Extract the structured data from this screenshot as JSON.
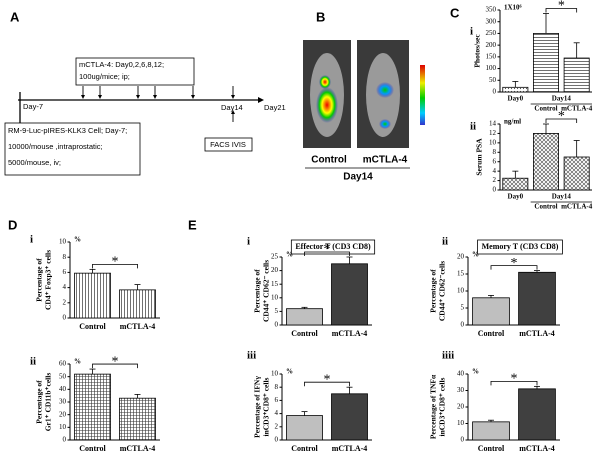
{
  "panels": [
    "A",
    "B",
    "C",
    "D",
    "E"
  ],
  "timeline": {
    "start": "Day-7",
    "day14": "Day14",
    "end": "Day21",
    "treatment": [
      "mCTLA-4: Day0,2,6,8,12;",
      "100ug/mice; ip;"
    ],
    "cells": [
      "RM-9-Luc-pIRES-KLK3 Cell; Day-7;",
      "10000/mouse ,intraprostatic;",
      "5000/mouse, iv;"
    ],
    "assays": "FACS IVIS"
  },
  "imaging": {
    "labels": [
      "Control",
      "mCTLA-4"
    ],
    "day": "Day14"
  },
  "chart_data": [
    {
      "type": "bar",
      "label": "i",
      "unit": "1X10⁶",
      "ylabel": [
        "Photos/sec"
      ],
      "categories": [
        "Day0",
        "Control",
        "mCTLA-4"
      ],
      "group_label": "Day14",
      "values": [
        20,
        250,
        145
      ],
      "errors": [
        25,
        85,
        65
      ],
      "ylim": [
        0,
        350
      ],
      "yticks": [
        0,
        50,
        100,
        150,
        200,
        250,
        300,
        350
      ],
      "patterns": [
        "dots",
        "hlines",
        "hlines"
      ],
      "annotation": "*"
    },
    {
      "type": "bar",
      "label": "ii",
      "unit": "ng/ml",
      "ylabel": [
        "Serum PSA"
      ],
      "categories": [
        "Day0",
        "Control",
        "mCTLA-4"
      ],
      "group_label": "Day14",
      "values": [
        2.5,
        12,
        7
      ],
      "errors": [
        1.5,
        2,
        3.5
      ],
      "ylim": [
        0,
        14
      ],
      "yticks": [
        0,
        2,
        4,
        6,
        8,
        10,
        12,
        14
      ],
      "patterns": [
        "cross",
        "cross",
        "cross"
      ],
      "annotation": "*"
    },
    {
      "type": "bar",
      "label": "i",
      "unit": "%",
      "ylabel": [
        "Percentage of",
        "CD4⁺ Foxp3⁺ cells"
      ],
      "categories": [
        "Control",
        "mCTLA-4"
      ],
      "values": [
        5.9,
        3.7
      ],
      "errors": [
        0.5,
        0.7
      ],
      "ylim": [
        0,
        10
      ],
      "yticks": [
        0,
        2,
        4,
        6,
        8,
        10
      ],
      "patterns": [
        "vlines",
        "vlines"
      ],
      "annotation": "*"
    },
    {
      "type": "bar",
      "label": "ii",
      "unit": "%",
      "ylabel": [
        "Percentage of",
        "Gr1⁺ CD11b⁺cells"
      ],
      "categories": [
        "Control",
        "mCTLA-4"
      ],
      "values": [
        52,
        33
      ],
      "errors": [
        4,
        3
      ],
      "ylim": [
        0,
        60
      ],
      "yticks": [
        0,
        10,
        20,
        30,
        40,
        50,
        60
      ],
      "patterns": [
        "grid",
        "grid"
      ],
      "annotation": "*"
    },
    {
      "type": "bar",
      "label": "i",
      "unit": "%",
      "title": "Effector T  (CD3  CD8)",
      "ylabel": [
        "Percentage of",
        "CD44⁺ CD62⁻ cells"
      ],
      "categories": [
        "Control",
        "mCTLA-4"
      ],
      "values": [
        6,
        22.5
      ],
      "errors": [
        0.5,
        2.5
      ],
      "ylim": [
        0,
        25
      ],
      "yticks": [
        0,
        5,
        10,
        15,
        20,
        25
      ],
      "colors": [
        "#bfbfbf",
        "#404040"
      ],
      "annotation": "*"
    },
    {
      "type": "bar",
      "label": "ii",
      "unit": "%",
      "title": "Memory T  (CD3  CD8)",
      "ylabel": [
        "Percentage of",
        "CD44⁺ CD62⁻cells"
      ],
      "categories": [
        "Control",
        "mCTLA-4"
      ],
      "values": [
        8,
        15.5
      ],
      "errors": [
        0.7,
        0.5
      ],
      "ylim": [
        0,
        20
      ],
      "yticks": [
        0,
        5,
        10,
        15,
        20
      ],
      "colors": [
        "#bfbfbf",
        "#404040"
      ],
      "annotation": "*"
    },
    {
      "type": "bar",
      "label": "iii",
      "unit": "%",
      "ylabel": [
        "Percentage of IFNγ",
        "inCD3⁺CD8⁺ cells"
      ],
      "categories": [
        "Control",
        "mCTLA-4"
      ],
      "values": [
        3.7,
        7
      ],
      "errors": [
        0.6,
        1
      ],
      "ylim": [
        0,
        10
      ],
      "yticks": [
        0,
        2,
        4,
        6,
        8,
        10
      ],
      "colors": [
        "#bfbfbf",
        "#404040"
      ],
      "annotation": "*"
    },
    {
      "type": "bar",
      "label": "iiii",
      "unit": "%",
      "ylabel": [
        "Percentage of TNFα",
        "inCD3⁺CD8⁺ cells"
      ],
      "categories": [
        "Control",
        "mCTLA-4"
      ],
      "values": [
        11,
        31
      ],
      "errors": [
        1,
        1.5
      ],
      "ylim": [
        0,
        40
      ],
      "yticks": [
        0,
        10,
        20,
        30,
        40
      ],
      "colors": [
        "#bfbfbf",
        "#404040"
      ],
      "annotation": "*"
    }
  ]
}
